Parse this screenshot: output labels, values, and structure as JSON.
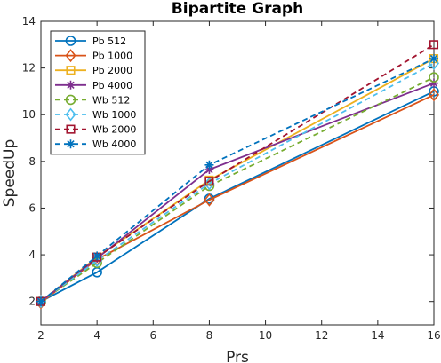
{
  "chart_data": {
    "type": "line",
    "title": "Bipartite Graph",
    "xlabel": "Prs",
    "ylabel": "SpeedUp",
    "xlim": [
      2,
      16
    ],
    "ylim": [
      1,
      14
    ],
    "xticks": [
      2,
      4,
      6,
      8,
      10,
      12,
      14,
      16
    ],
    "yticks": [
      2,
      4,
      6,
      8,
      10,
      12,
      14
    ],
    "grid": false,
    "legend_position": "top-left",
    "x": [
      2,
      4,
      8,
      16
    ],
    "series": [
      {
        "name": "Pb 512",
        "values": [
          2.0,
          3.25,
          6.4,
          11.0
        ],
        "color": "#0072BD",
        "marker": "circle",
        "dash": "solid"
      },
      {
        "name": "Pb 1000",
        "values": [
          1.95,
          3.8,
          6.35,
          10.85
        ],
        "color": "#D95319",
        "marker": "diamond",
        "dash": "solid"
      },
      {
        "name": "Pb 2000",
        "values": [
          2.0,
          3.9,
          7.2,
          12.4
        ],
        "color": "#EDB120",
        "marker": "square",
        "dash": "solid"
      },
      {
        "name": "Pb 4000",
        "values": [
          2.0,
          3.85,
          7.65,
          11.35
        ],
        "color": "#7E2F8E",
        "marker": "star",
        "dash": "solid"
      },
      {
        "name": "Wb 512",
        "values": [
          2.0,
          3.65,
          6.95,
          11.6
        ],
        "color": "#77AC30",
        "marker": "circle",
        "dash": "dashed"
      },
      {
        "name": "Wb 1000",
        "values": [
          2.0,
          3.75,
          7.05,
          12.2
        ],
        "color": "#4DBEEE",
        "marker": "diamond",
        "dash": "dashed"
      },
      {
        "name": "Wb 2000",
        "values": [
          2.0,
          3.9,
          7.15,
          13.0
        ],
        "color": "#A2142F",
        "marker": "square",
        "dash": "dashed"
      },
      {
        "name": "Wb 4000",
        "values": [
          2.0,
          3.95,
          7.85,
          12.4
        ],
        "color": "#0072BD",
        "marker": "star",
        "dash": "dashed"
      }
    ]
  }
}
